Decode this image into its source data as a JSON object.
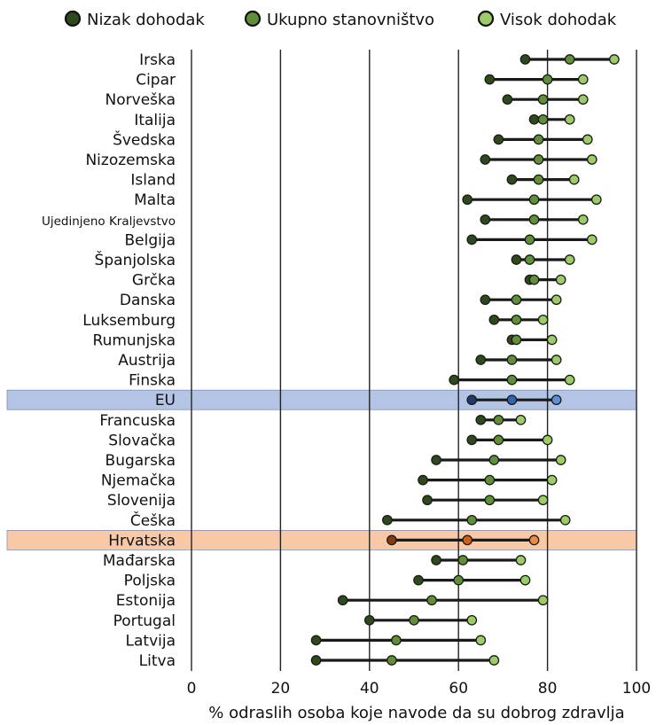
{
  "chart_data": {
    "type": "dumbbell",
    "xlabel": "% odraslih osoba koje navode da su dobrog zdravlja",
    "xlim": [
      0,
      100
    ],
    "xticks": [
      0,
      20,
      40,
      60,
      80,
      100
    ],
    "grid": true,
    "legend_position": "top",
    "series": [
      {
        "key": "low",
        "name": "Nizak dohodak",
        "color": "#2d4a1b"
      },
      {
        "key": "total",
        "name": "Ukupno stanovništvo",
        "color": "#5f8f36"
      },
      {
        "key": "high",
        "name": "Visok dohodak",
        "color": "#9ccc65"
      }
    ],
    "highlight_colors": {
      "EU": {
        "band": "#b4c4e4",
        "low": "#1f3a6e",
        "total": "#2f66b0",
        "high": "#5b8fd8"
      },
      "Hrvatska": {
        "band": "#f9c9a7",
        "low": "#8a3a08",
        "total": "#d35f12",
        "high": "#f08a3c"
      }
    },
    "rows": [
      {
        "label": "Irska",
        "low": 75,
        "total": 85,
        "high": 95
      },
      {
        "label": "Cipar",
        "low": 67,
        "total": 80,
        "high": 88
      },
      {
        "label": "Norveška",
        "low": 71,
        "total": 79,
        "high": 88
      },
      {
        "label": "Italija",
        "low": 77,
        "total": 79,
        "high": 85
      },
      {
        "label": "Švedska",
        "low": 69,
        "total": 78,
        "high": 89
      },
      {
        "label": "Nizozemska",
        "low": 66,
        "total": 78,
        "high": 90
      },
      {
        "label": "Island",
        "low": 72,
        "total": 78,
        "high": 86
      },
      {
        "label": "Malta",
        "low": 62,
        "total": 77,
        "high": 91
      },
      {
        "label": "Ujedinjeno Kraljevstvo",
        "low": 66,
        "total": 77,
        "high": 88
      },
      {
        "label": "Belgija",
        "low": 63,
        "total": 76,
        "high": 90
      },
      {
        "label": "Španjolska",
        "low": 73,
        "total": 76,
        "high": 85
      },
      {
        "label": "Grčka",
        "low": 76,
        "total": 77,
        "high": 83
      },
      {
        "label": "Danska",
        "low": 66,
        "total": 73,
        "high": 82
      },
      {
        "label": "Luksemburg",
        "low": 68,
        "total": 73,
        "high": 79
      },
      {
        "label": "Rumunjska",
        "low": 72,
        "total": 73,
        "high": 81
      },
      {
        "label": "Austrija",
        "low": 65,
        "total": 72,
        "high": 82
      },
      {
        "label": "Finska",
        "low": 59,
        "total": 72,
        "high": 85
      },
      {
        "label": "EU",
        "low": 63,
        "total": 72,
        "high": 82
      },
      {
        "label": "Francuska",
        "low": 65,
        "total": 69,
        "high": 74
      },
      {
        "label": "Slovačka",
        "low": 63,
        "total": 69,
        "high": 80
      },
      {
        "label": "Bugarska",
        "low": 55,
        "total": 68,
        "high": 83
      },
      {
        "label": "Njemačka",
        "low": 52,
        "total": 67,
        "high": 81
      },
      {
        "label": "Slovenija",
        "low": 53,
        "total": 67,
        "high": 79
      },
      {
        "label": "Češka",
        "low": 44,
        "total": 63,
        "high": 84
      },
      {
        "label": "Hrvatska",
        "low": 45,
        "total": 62,
        "high": 77
      },
      {
        "label": "Mađarska",
        "low": 55,
        "total": 61,
        "high": 74
      },
      {
        "label": "Poljska",
        "low": 51,
        "total": 60,
        "high": 75
      },
      {
        "label": "Estonija",
        "low": 34,
        "total": 54,
        "high": 79
      },
      {
        "label": "Portugal",
        "low": 40,
        "total": 50,
        "high": 63
      },
      {
        "label": "Latvija",
        "low": 28,
        "total": 46,
        "high": 65
      },
      {
        "label": "Litva",
        "low": 28,
        "total": 45,
        "high": 68
      }
    ]
  }
}
